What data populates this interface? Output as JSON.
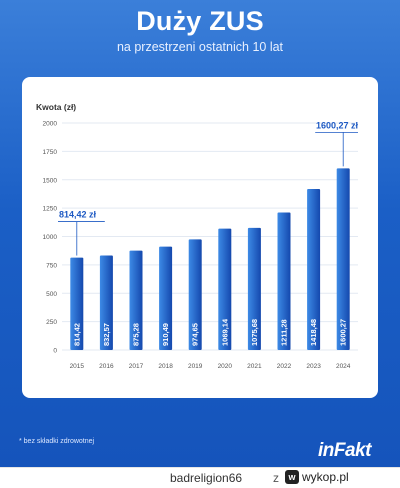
{
  "header": {
    "title": "Duży ZUS",
    "subtitle": "na przestrzeni ostatnich 10 lat"
  },
  "chart_data": {
    "type": "bar",
    "title": "",
    "ylabel": "Kwota (zł)",
    "xlabel": "",
    "ylim": [
      0,
      2000
    ],
    "yticks": [
      0,
      250,
      500,
      750,
      1000,
      1250,
      1500,
      1750,
      2000
    ],
    "categories": [
      "2015",
      "2016",
      "2017",
      "2018",
      "2019",
      "2020",
      "2021",
      "2022",
      "2023",
      "2024"
    ],
    "values": [
      814.42,
      832.57,
      875.28,
      910.49,
      974.65,
      1069.14,
      1075.68,
      1211.28,
      1418.48,
      1600.27
    ],
    "value_labels": [
      "814,42",
      "832,57",
      "875,28",
      "910,49",
      "974,65",
      "1069,14",
      "1075,68",
      "1211,28",
      "1418,48",
      "1600,27"
    ],
    "annotations": [
      {
        "category": "2015",
        "text": "814,42 zł"
      },
      {
        "category": "2024",
        "text": "1600,27 zł"
      }
    ],
    "grid": true,
    "colors": {
      "bar_light": "#3d8ae6",
      "bar_dark": "#1448ad",
      "grid": "#e3e9f2",
      "axis_text": "#555555",
      "annotation": "#1d59c3"
    }
  },
  "footnote": "* bez składki zdrowotnej",
  "logo": "inFakt",
  "footer": {
    "username": "badreligion66",
    "separator": "z",
    "site": "wykop.pl",
    "site_icon": "wykop-logo-icon"
  }
}
